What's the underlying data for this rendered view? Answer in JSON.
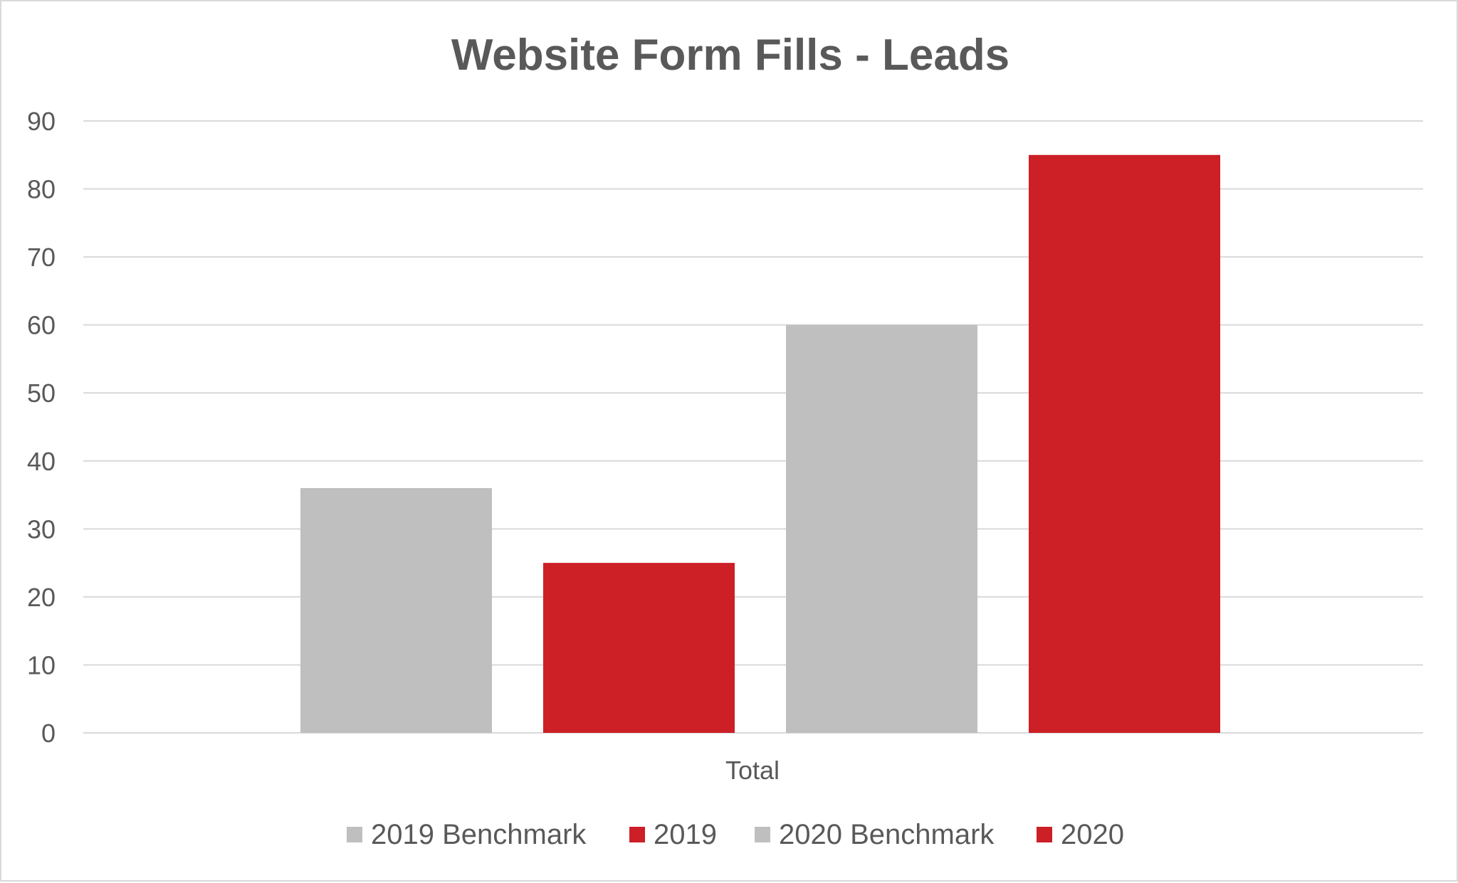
{
  "chart_data": {
    "type": "bar",
    "title": "Website Form Fills - Leads",
    "categories": [
      "Total"
    ],
    "series": [
      {
        "name": "2019 Benchmark",
        "values": [
          36
        ],
        "color": "#bfbfbf"
      },
      {
        "name": "2019",
        "values": [
          25
        ],
        "color": "#cc1f26"
      },
      {
        "name": "2020 Benchmark",
        "values": [
          60
        ],
        "color": "#bfbfbf"
      },
      {
        "name": "2020",
        "values": [
          85
        ],
        "color": "#cc1f26"
      }
    ],
    "ylim": [
      0,
      90
    ],
    "yticks": [
      "0",
      "10",
      "20",
      "30",
      "40",
      "50",
      "60",
      "70",
      "80",
      "90"
    ],
    "grid": true,
    "legend": "bottom"
  }
}
